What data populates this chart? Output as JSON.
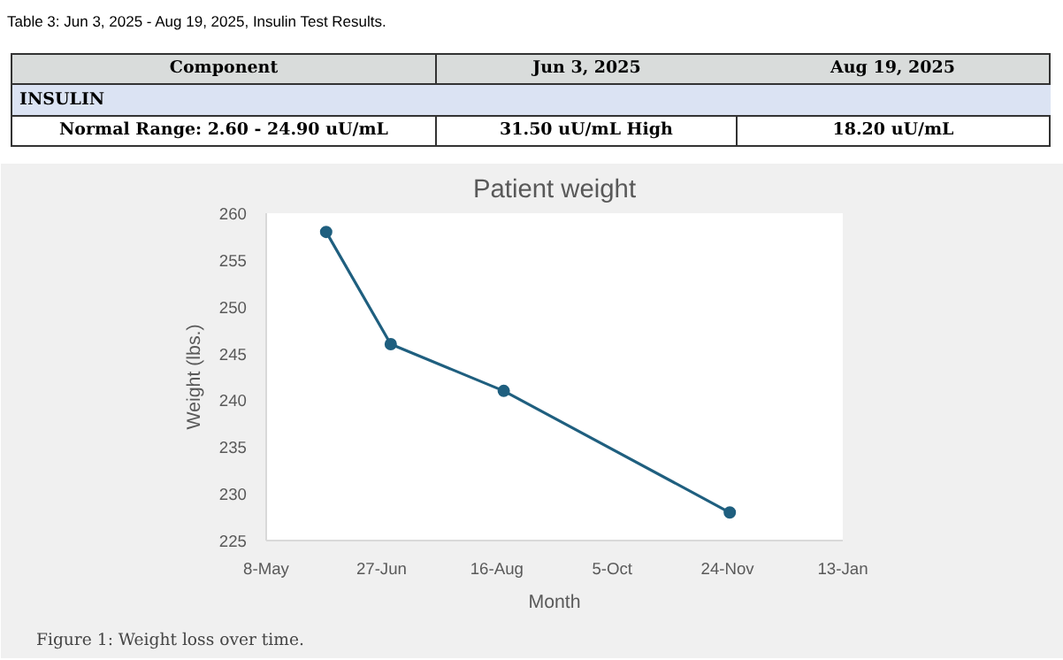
{
  "chart_data": [
    {
      "type": "other",
      "title": "Table 3: Jun 3, 2025 - Aug 19, 2025, Insulin Test Results.",
      "annotations": [
        "Component",
        "Jun 3, 2025",
        "Aug 19, 2025",
        "INSULIN",
        "Normal Range: 2.60 - 24.90 uU/mL",
        "31.50 uU/mL High",
        "18.20 uU/mL"
      ]
    },
    {
      "type": "line",
      "title": "Patient weight",
      "xlabel": "Month",
      "ylabel": "Weight (lbs.)",
      "x": [
        "2025-06-03",
        "2025-07-01",
        "2025-08-19",
        "2025-11-25"
      ],
      "series": [
        {
          "color": "#1f5f7f",
          "values": [
            258,
            246,
            241,
            228
          ]
        }
      ],
      "xlim": [
        "2025-05-08",
        "2026-01-13"
      ],
      "xticks": [
        {
          "value": "2025-05-08",
          "label": "8-May"
        },
        {
          "value": "2025-06-27",
          "label": "27-Jun"
        },
        {
          "value": "2025-08-16",
          "label": "16-Aug"
        },
        {
          "value": "2025-10-05",
          "label": "5-Oct"
        },
        {
          "value": "2025-11-24",
          "label": "24-Nov"
        },
        {
          "value": "2026-01-13",
          "label": "13-Jan"
        }
      ],
      "ylim": [
        225,
        260
      ],
      "yticks": [
        225,
        230,
        235,
        240,
        245,
        250,
        255,
        260
      ],
      "marker": "circle",
      "grid": false,
      "annotations": [
        "Figure 1: Weight loss over time."
      ]
    }
  ]
}
